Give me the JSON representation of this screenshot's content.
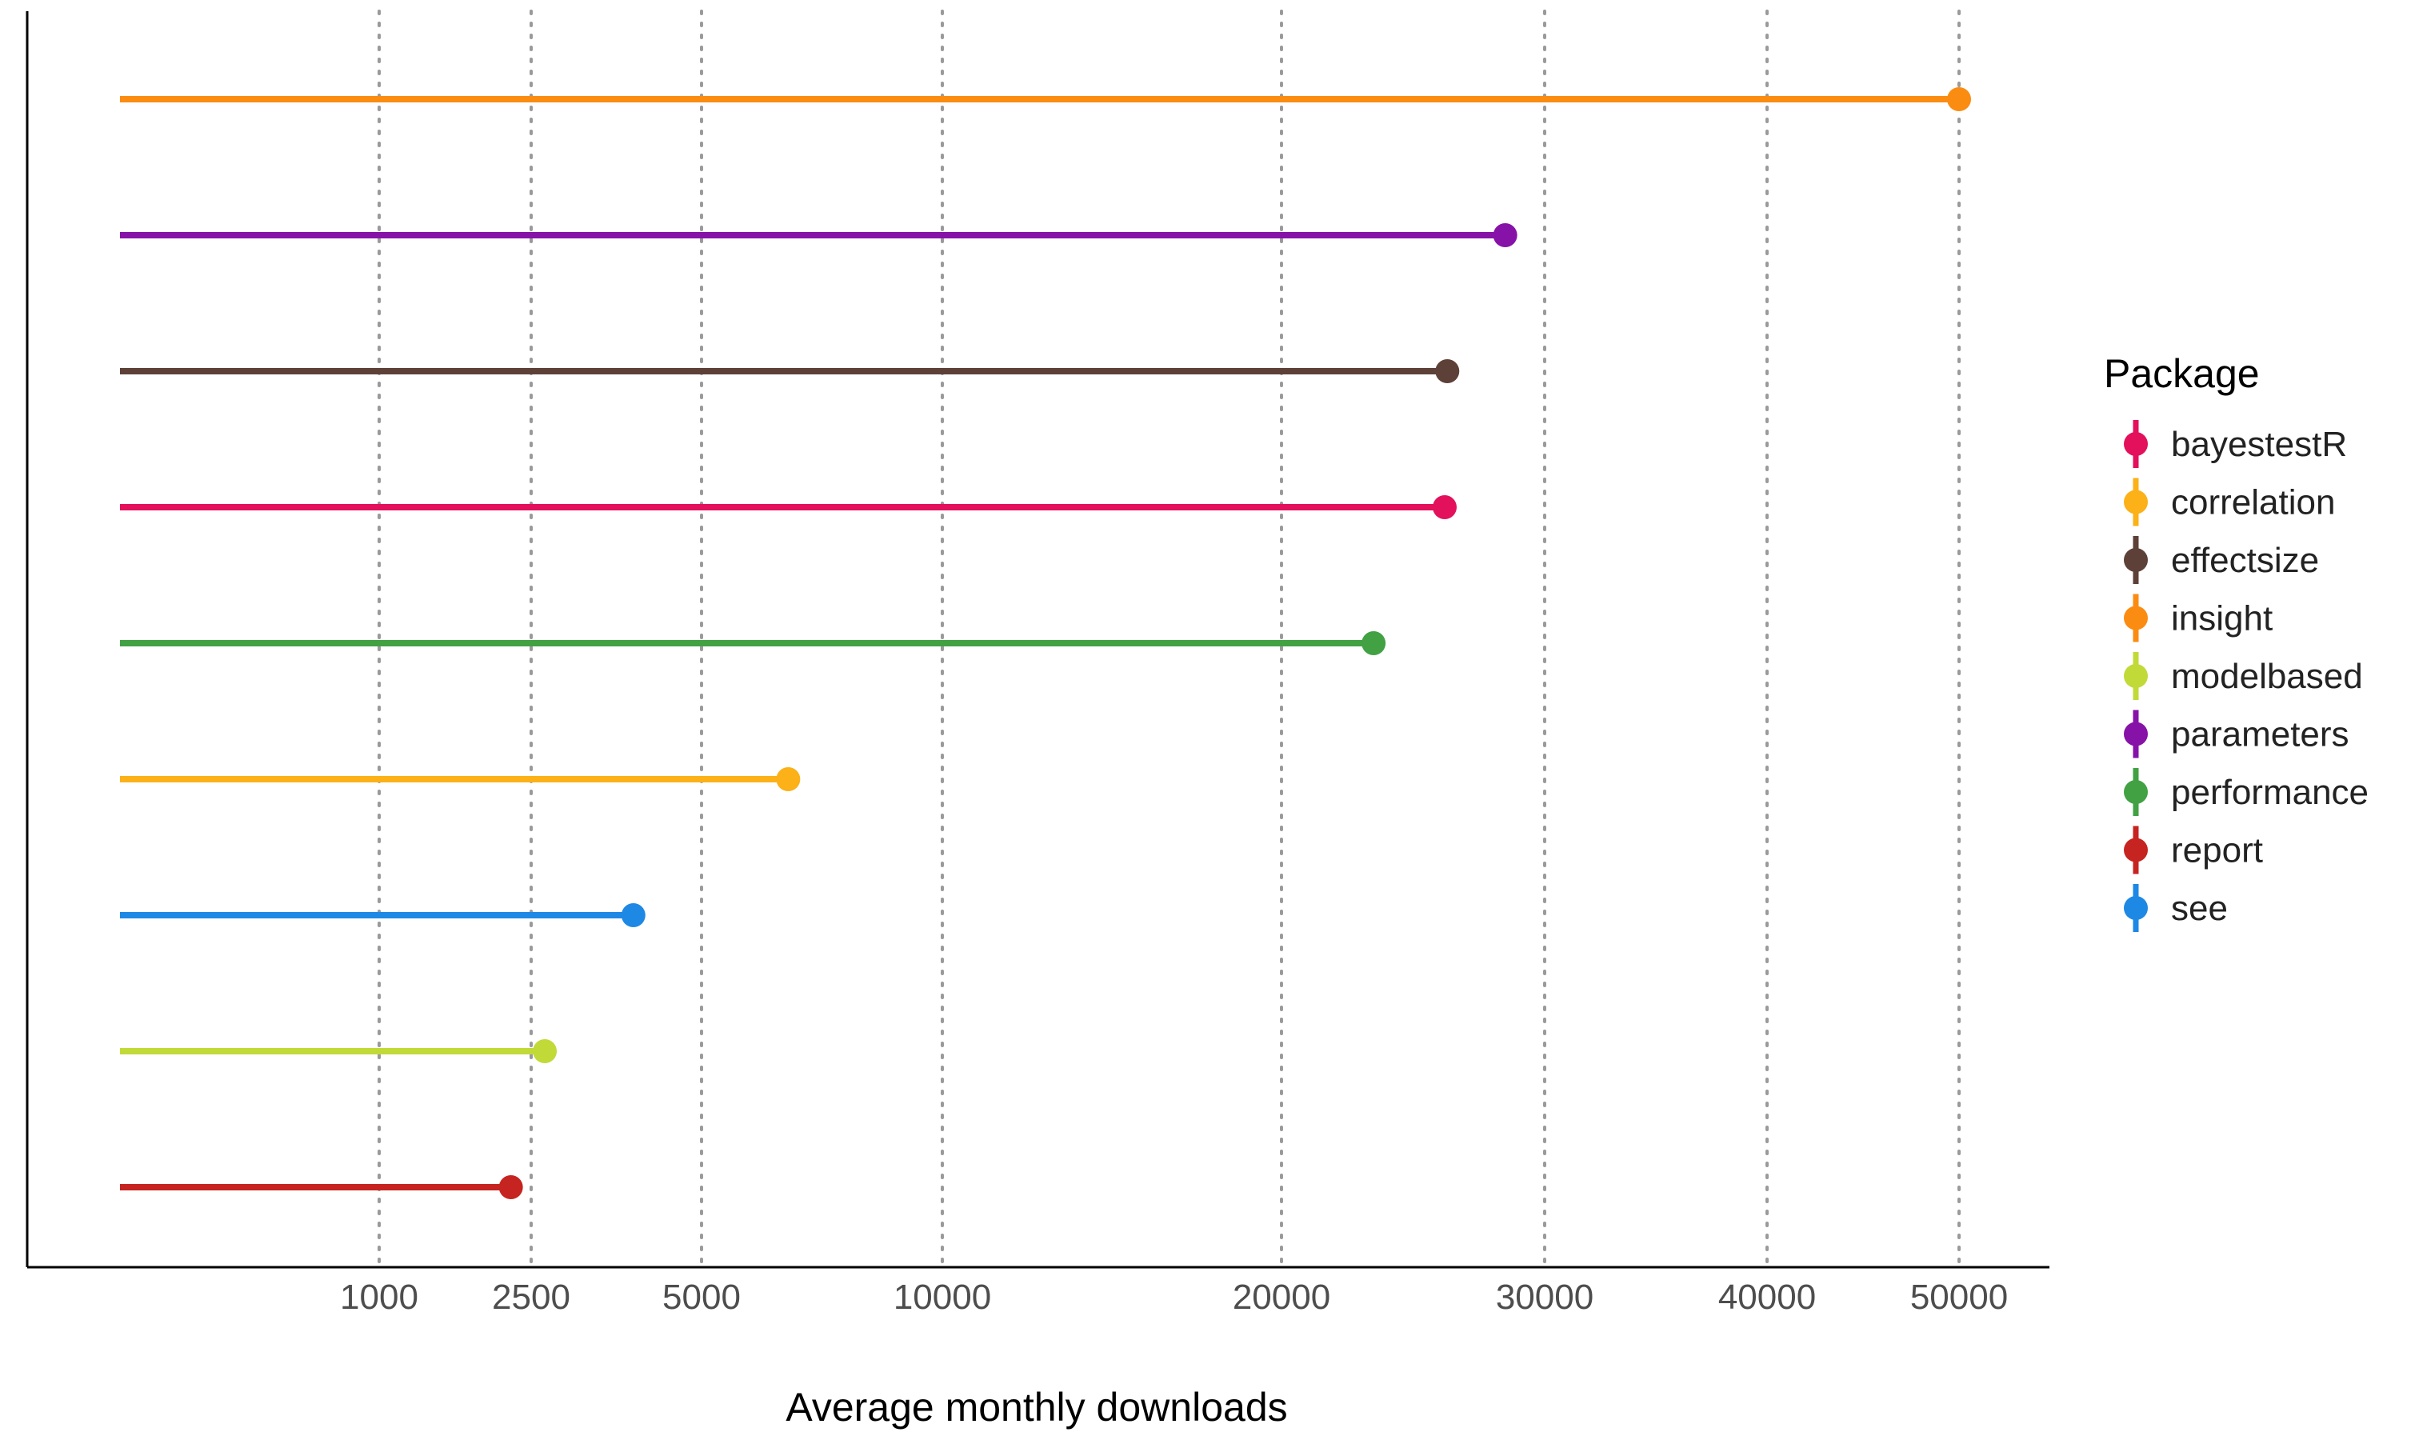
{
  "chart_data": {
    "type": "lollipop",
    "orientation": "horizontal",
    "title": "",
    "xlabel": "Average monthly downloads",
    "ylabel": "",
    "x_tick_labels": [
      "1000",
      "2500",
      "5000",
      "10000",
      "20000",
      "30000",
      "40000",
      "50000"
    ],
    "x_ticks": [
      1000,
      2500,
      5000,
      10000,
      20000,
      30000,
      40000,
      50000
    ],
    "grid": "vertical dotted at x ticks",
    "legend": {
      "title": "Package",
      "placement": "right",
      "entries": [
        "bayestestR",
        "correlation",
        "effectsize",
        "insight",
        "modelbased",
        "parameters",
        "performance",
        "report",
        "see"
      ]
    },
    "colors": {
      "bayestestR": "#e3105c",
      "correlation": "#fbb117",
      "effectsize": "#5d4037",
      "insight": "#fb8c12",
      "modelbased": "#c1da38",
      "parameters": "#8612a8",
      "performance": "#41a143",
      "report": "#c62420",
      "see": "#1e88e5"
    },
    "rows_top_to_bottom": [
      {
        "package": "insight",
        "value": 50000
      },
      {
        "package": "parameters",
        "value": 28500
      },
      {
        "package": "effectsize",
        "value": 26300
      },
      {
        "package": "bayestestR",
        "value": 26200
      },
      {
        "package": "performance",
        "value": 23500
      },
      {
        "package": "correlation",
        "value": 6800
      },
      {
        "package": "see",
        "value": 4000
      },
      {
        "package": "modelbased",
        "value": 2700
      },
      {
        "package": "report",
        "value": 2300
      }
    ]
  }
}
